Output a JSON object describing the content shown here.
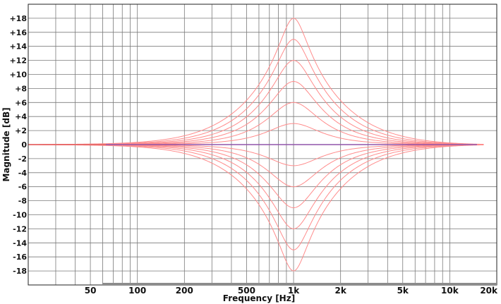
{
  "chart_data": {
    "type": "line",
    "title": "",
    "xlabel": "Frequency [Hz]",
    "ylabel": "Magnitude [dB]",
    "xscale": "log",
    "xlim": [
      20,
      20000
    ],
    "ylim": [
      -20,
      20
    ],
    "grid": true,
    "legend": "none",
    "x_ticks": [
      {
        "value": 50,
        "label": "50"
      },
      {
        "value": 100,
        "label": "100"
      },
      {
        "value": 200,
        "label": "200"
      },
      {
        "value": 500,
        "label": "500"
      },
      {
        "value": 1000,
        "label": "1k"
      },
      {
        "value": 2000,
        "label": "2k"
      },
      {
        "value": 5000,
        "label": "5k"
      },
      {
        "value": 10000,
        "label": "10k"
      },
      {
        "value": 20000,
        "label": "20k"
      }
    ],
    "y_ticks": [
      {
        "value": 18,
        "label": "+18"
      },
      {
        "value": 16,
        "label": "+16"
      },
      {
        "value": 14,
        "label": "+14"
      },
      {
        "value": 12,
        "label": "+12"
      },
      {
        "value": 10,
        "label": "+10"
      },
      {
        "value": 8,
        "label": "+8"
      },
      {
        "value": 6,
        "label": "+6"
      },
      {
        "value": 4,
        "label": "+4"
      },
      {
        "value": 2,
        "label": "+2"
      },
      {
        "value": 0,
        "label": "0"
      },
      {
        "value": -2,
        "label": "-2"
      },
      {
        "value": -4,
        "label": "-4"
      },
      {
        "value": -6,
        "label": "-6"
      },
      {
        "value": -8,
        "label": "-8"
      },
      {
        "value": -10,
        "label": "-10"
      },
      {
        "value": -12,
        "label": "-12"
      },
      {
        "value": -14,
        "label": "-14"
      },
      {
        "value": -16,
        "label": "-16"
      },
      {
        "value": -18,
        "label": "-18"
      }
    ],
    "center_frequency": 1000,
    "series": [
      {
        "peak_gain_db": 18
      },
      {
        "peak_gain_db": 15
      },
      {
        "peak_gain_db": 12
      },
      {
        "peak_gain_db": 9
      },
      {
        "peak_gain_db": 6
      },
      {
        "peak_gain_db": 3
      },
      {
        "peak_gain_db": 0
      },
      {
        "peak_gain_db": -3
      },
      {
        "peak_gain_db": -6
      },
      {
        "peak_gain_db": -9
      },
      {
        "peak_gain_db": -12
      },
      {
        "peak_gain_db": -15
      },
      {
        "peak_gain_db": -18
      }
    ],
    "colors": {
      "curve": "#ff8c8c",
      "zero_line": "#6a4fd0",
      "grid": "#7a7a7a",
      "frame": "#222222",
      "scrollbar": "#8c8c8c"
    }
  }
}
